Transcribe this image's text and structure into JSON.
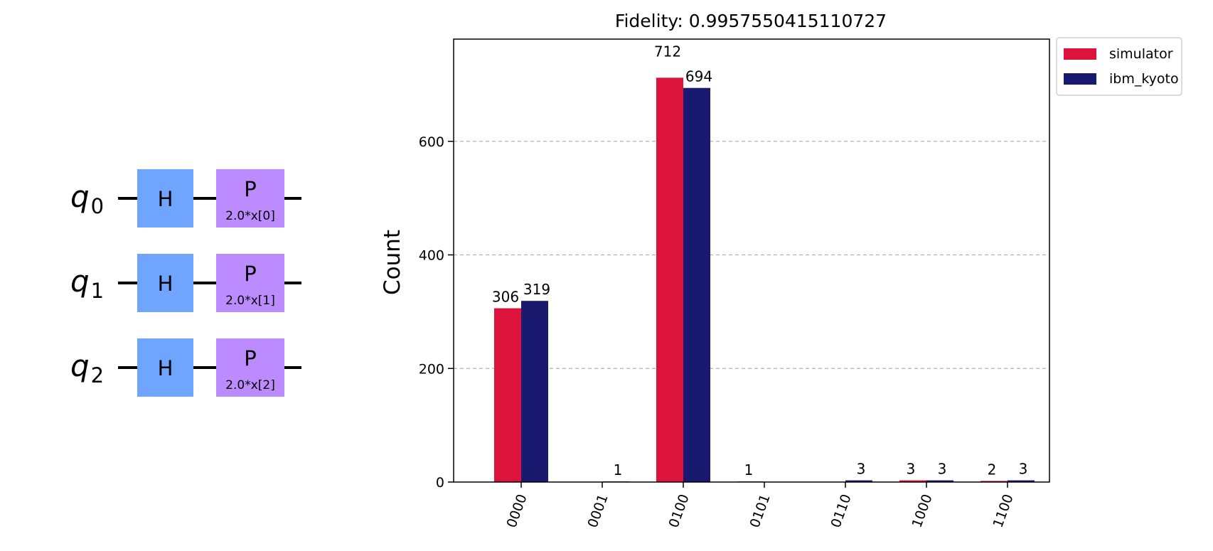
{
  "circuit": {
    "qubits": [
      {
        "label": "q",
        "index": "0",
        "gates": [
          {
            "name": "H"
          },
          {
            "name": "P",
            "param": "2.0*x[0]"
          }
        ]
      },
      {
        "label": "q",
        "index": "1",
        "gates": [
          {
            "name": "H"
          },
          {
            "name": "P",
            "param": "2.0*x[1]"
          }
        ]
      },
      {
        "label": "q",
        "index": "2",
        "gates": [
          {
            "name": "H"
          },
          {
            "name": "P",
            "param": "2.0*x[2]"
          }
        ]
      }
    ],
    "colors": {
      "H": "#6fa4ff",
      "P": "#bb8bff",
      "wire": "#000000"
    }
  },
  "chart_data": {
    "type": "bar",
    "title": "Fidelity: 0.9957550415110727",
    "xlabel": "",
    "ylabel": "Count",
    "categories": [
      "0000",
      "0001",
      "0100",
      "0101",
      "0110",
      "1000",
      "1100"
    ],
    "series": [
      {
        "name": "simulator",
        "color": "#dc143c",
        "values": [
          306,
          0,
          712,
          1,
          0,
          3,
          2
        ],
        "labels": [
          "306",
          "",
          "712",
          "1",
          "",
          "3",
          "2"
        ]
      },
      {
        "name": "ibm_kyoto",
        "color": "#191970",
        "values": [
          319,
          1,
          694,
          0,
          3,
          3,
          3
        ],
        "labels": [
          "319",
          "1",
          "694",
          "",
          "3",
          "3",
          "3"
        ]
      }
    ],
    "ylim": [
      0,
      780
    ],
    "yticks": [
      0,
      200,
      400,
      600
    ],
    "grid": true,
    "legend": "top-right outside"
  }
}
